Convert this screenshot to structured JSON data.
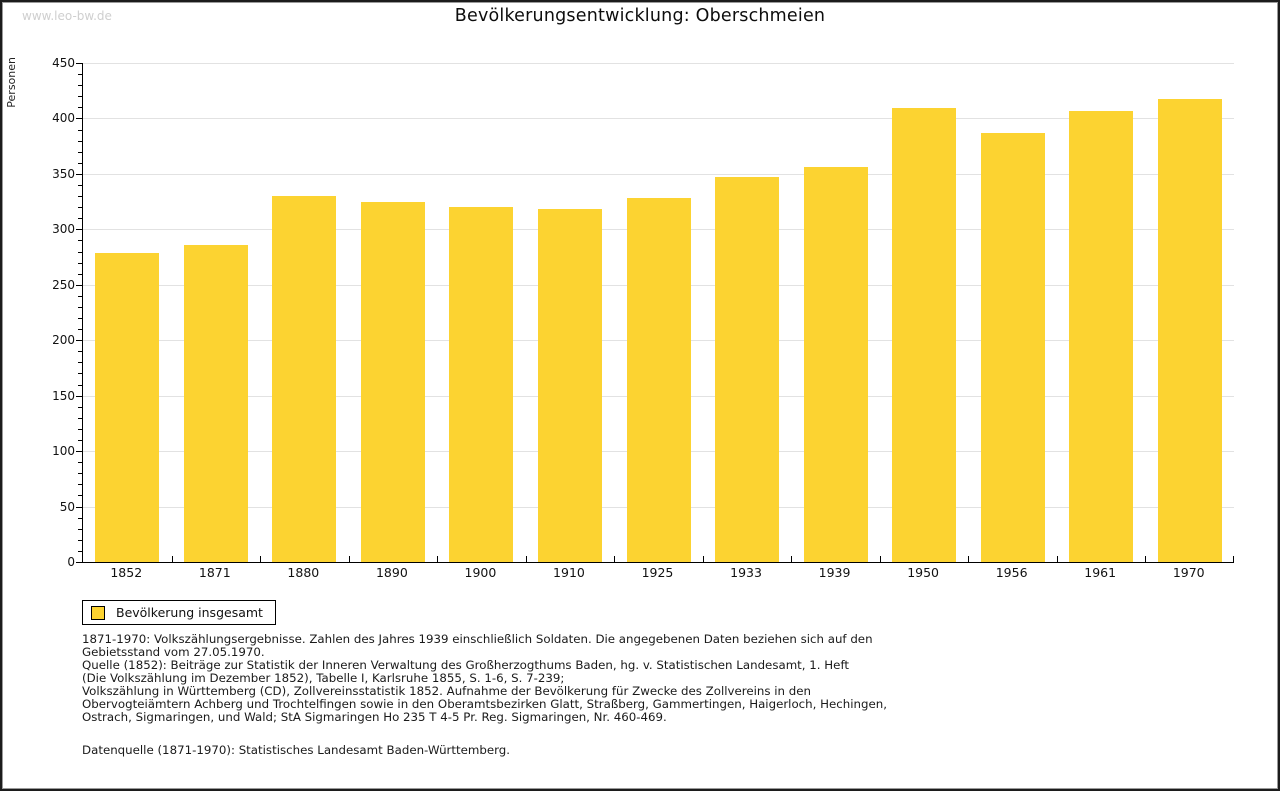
{
  "header": {
    "watermark": "www.leo-bw.de",
    "title": "Bevölkerungsentwicklung: Oberschmeien"
  },
  "chart_data": {
    "type": "bar",
    "title": "Bevölkerungsentwicklung: Oberschmeien",
    "ylabel": "Personen",
    "xlabel": "",
    "categories": [
      "1852",
      "1871",
      "1880",
      "1890",
      "1900",
      "1910",
      "1925",
      "1933",
      "1939",
      "1950",
      "1956",
      "1961",
      "1970"
    ],
    "series": [
      {
        "name": "Bevölkerung insgesamt",
        "values": [
          279,
          286,
          330,
          325,
          320,
          318,
          328,
          347,
          356,
          409,
          387,
          407,
          418
        ]
      }
    ],
    "ylim": [
      0,
      450
    ],
    "ytick_step": 50,
    "minor_tick_step": 10,
    "grid": true,
    "legend_position": "bottom-left",
    "bar_color": "#fcd331",
    "gridline_color": "#e2e2e2"
  },
  "legend": {
    "items": [
      {
        "label": "Bevölkerung insgesamt",
        "color": "#fcd331"
      }
    ]
  },
  "notes": {
    "lines": [
      "1871-1970: Volkszählungsergebnisse. Zahlen des Jahres 1939 einschließlich Soldaten. Die angegebenen Daten beziehen sich auf den",
      "Gebietsstand vom 27.05.1970.",
      "Quelle (1852): Beiträge zur Statistik der Inneren Verwaltung des Großherzogthums Baden, hg. v. Statistischen Landesamt, 1. Heft",
      "(Die Volkszählung im Dezember 1852), Tabelle I, Karlsruhe 1855, S. 1-6, S. 7-239;",
      "Volkszählung in Württemberg (CD), Zollvereinsstatistik 1852. Aufnahme der Bevölkerung für Zwecke des Zollvereins in den",
      "Obervogteiämtern Achberg und Trochtelfingen sowie in den Oberamtsbezirken Glatt, Straßberg, Gammertingen, Haigerloch, Hechingen,",
      "Ostrach, Sigmaringen, und Wald; StA Sigmaringen Ho 235 T 4-5 Pr. Reg. Sigmaringen, Nr. 460-469."
    ],
    "datasource": "Datenquelle (1871-1970): Statistisches Landesamt Baden-Württemberg."
  }
}
